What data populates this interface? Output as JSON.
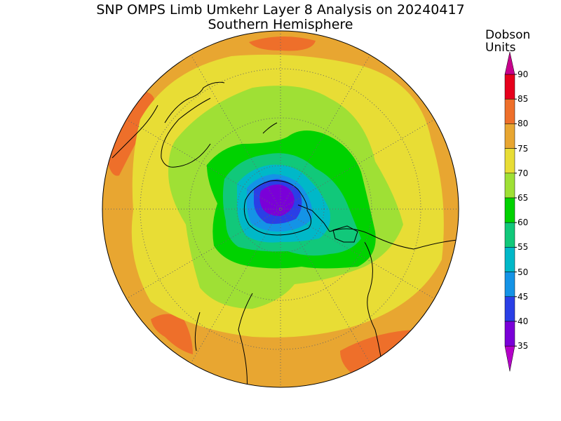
{
  "title": {
    "line1": "SNP OMPS Limb Umkehr Layer 8 Analysis on 20240417",
    "line2": "Southern Hemisphere"
  },
  "colorbar": {
    "title_line1": "Dobson",
    "title_line2": "Units",
    "levels": [
      {
        "value": 90,
        "label": "90",
        "color": "#c8008c"
      },
      {
        "value": 85,
        "label": "85",
        "color": "#e6001c"
      },
      {
        "value": 80,
        "label": "80",
        "color": "#ee6f2a"
      },
      {
        "value": 75,
        "label": "75",
        "color": "#e8a631"
      },
      {
        "value": 70,
        "label": "70",
        "color": "#e8dd35"
      },
      {
        "value": 65,
        "label": "65",
        "color": "#9fe035"
      },
      {
        "value": 60,
        "label": "60",
        "color": "#00d200"
      },
      {
        "value": 55,
        "label": "55",
        "color": "#11c87a"
      },
      {
        "value": 50,
        "label": "50",
        "color": "#00b8c8"
      },
      {
        "value": 45,
        "label": "45",
        "color": "#1493e6"
      },
      {
        "value": 40,
        "label": "40",
        "color": "#2a3fe6"
      },
      {
        "value": 35,
        "label": "35",
        "color": "#7a00d8"
      }
    ],
    "lower_arrow_color": "#b400c8",
    "upper_arrow_color": "#c8008c"
  },
  "map": {
    "projection": "polar stereographic",
    "hemisphere": "Southern",
    "grid": true
  }
}
